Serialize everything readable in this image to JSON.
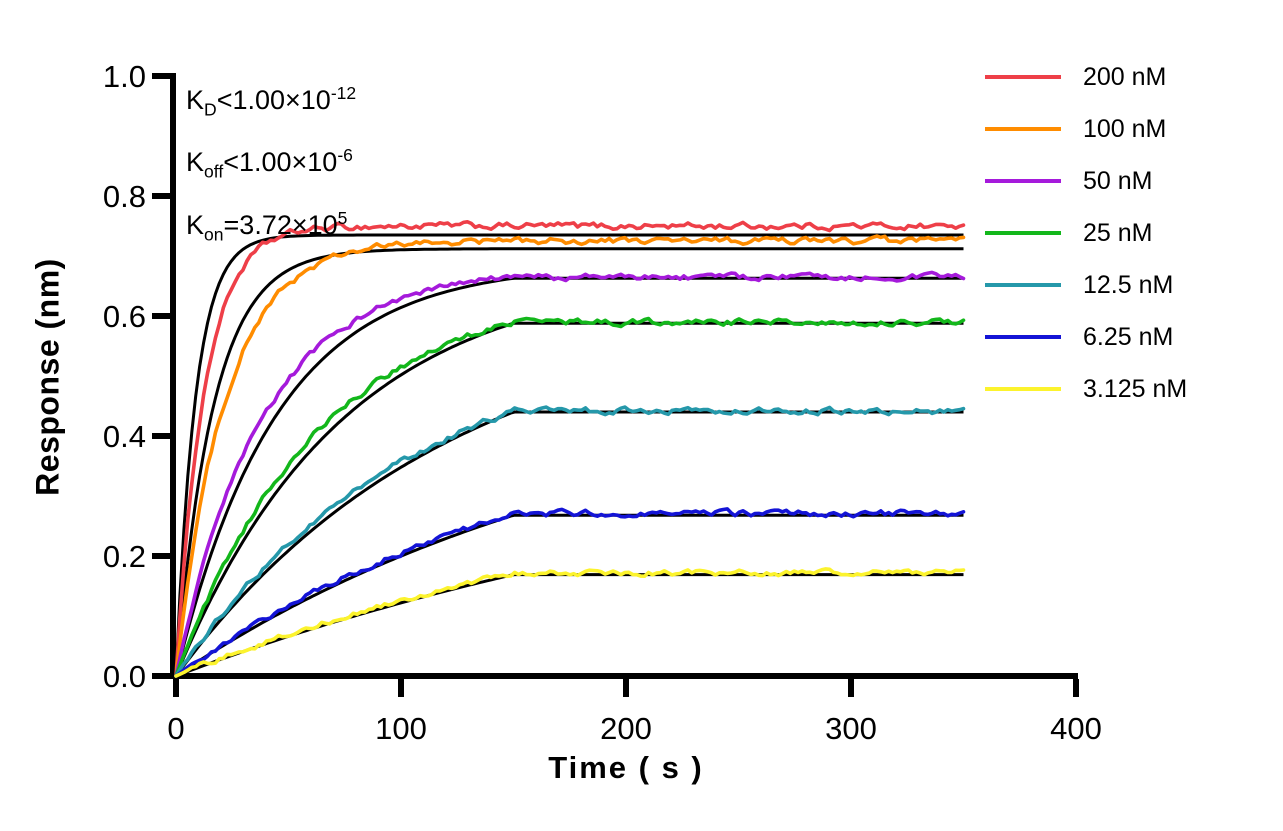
{
  "chart_data": {
    "type": "line",
    "title": "",
    "xlabel": "Time ( s )",
    "ylabel": "Response (nm)",
    "xlim": [
      0,
      400
    ],
    "ylim": [
      0.0,
      1.0
    ],
    "x_ticks": [
      0,
      100,
      200,
      300,
      400
    ],
    "x_tick_labels": [
      "0",
      "100",
      "200",
      "300",
      "400"
    ],
    "y_ticks": [
      0.0,
      0.2,
      0.4,
      0.6,
      0.8,
      1.0
    ],
    "y_tick_labels": [
      "0.0",
      "0.2",
      "0.4",
      "0.6",
      "0.8",
      "1.0"
    ],
    "grid": false,
    "legend_position": "right-outside",
    "association_end_s": 150,
    "trace_end_s": 350,
    "fit_color": "#000000",
    "annotation": {
      "lines": [
        {
          "base": "K",
          "sub": "D",
          "mid": "<1.00×10",
          "exp": "-12"
        },
        {
          "base": "K",
          "sub": "off",
          "mid": "<1.00×10",
          "exp": "-6"
        },
        {
          "base": "K",
          "sub": "on",
          "mid": "=3.72×10",
          "exp": "5"
        }
      ]
    },
    "series": [
      {
        "name": "200 nM",
        "concentration_nM": 200,
        "color": "#EE3F48",
        "plateau_nm": 0.75,
        "k_obs_per_s": 0.08,
        "noise_nm": 0.005,
        "fit": {
          "plateau_nm": 0.735,
          "k_obs_per_s": 0.115
        }
      },
      {
        "name": "100 nM",
        "concentration_nM": 100,
        "color": "#FF8C00",
        "plateau_nm": 0.725,
        "k_obs_per_s": 0.046,
        "noise_nm": 0.005,
        "fit": {
          "plateau_nm": 0.712,
          "k_obs_per_s": 0.06
        }
      },
      {
        "name": "50 nM",
        "concentration_nM": 50,
        "color": "#A51ADB",
        "plateau_nm": 0.665,
        "k_obs_per_s": 0.026,
        "noise_nm": 0.0045,
        "fit": {
          "plateau_nm": 0.663,
          "k_obs_per_s": 0.0225
        }
      },
      {
        "name": "25 nM",
        "concentration_nM": 25,
        "color": "#13B71B",
        "plateau_nm": 0.59,
        "k_obs_per_s": 0.0155,
        "noise_nm": 0.0045,
        "fit": {
          "plateau_nm": 0.588,
          "k_obs_per_s": 0.0135
        }
      },
      {
        "name": "12.5 nM",
        "concentration_nM": 12.5,
        "color": "#2598AA",
        "plateau_nm": 0.442,
        "k_obs_per_s": 0.0095,
        "noise_nm": 0.0045,
        "fit": {
          "plateau_nm": 0.44,
          "k_obs_per_s": 0.0082
        }
      },
      {
        "name": "6.25 nM",
        "concentration_nM": 6.25,
        "color": "#1414D6",
        "plateau_nm": 0.271,
        "k_obs_per_s": 0.006,
        "noise_nm": 0.0045,
        "fit": {
          "plateau_nm": 0.268,
          "k_obs_per_s": 0.005
        }
      },
      {
        "name": "3.125 nM",
        "concentration_nM": 3.125,
        "color": "#FCF32D",
        "plateau_nm": 0.172,
        "k_obs_per_s": 0.004,
        "noise_nm": 0.004,
        "fit": {
          "plateau_nm": 0.169,
          "k_obs_per_s": 0.0034
        }
      }
    ]
  }
}
